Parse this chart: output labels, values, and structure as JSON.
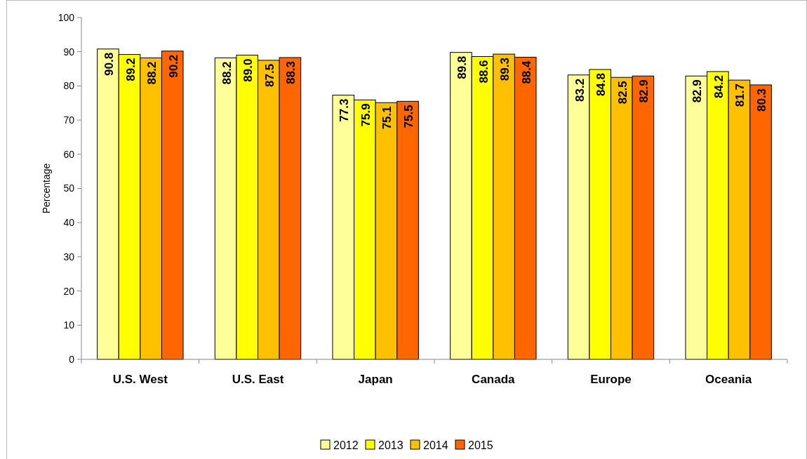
{
  "chart_data": {
    "type": "bar",
    "ylabel": "Percentage",
    "categories": [
      "U.S. West",
      "U.S. East",
      "Japan",
      "Canada",
      "Europe",
      "Oceania"
    ],
    "series": [
      {
        "name": "2012",
        "color": "#ffff99",
        "values": [
          90.8,
          88.2,
          77.3,
          89.8,
          83.2,
          82.9
        ]
      },
      {
        "name": "2013",
        "color": "#ffff00",
        "values": [
          89.2,
          89.0,
          75.9,
          88.6,
          84.8,
          84.2
        ]
      },
      {
        "name": "2014",
        "color": "#ffc000",
        "values": [
          88.2,
          87.5,
          75.1,
          89.3,
          82.5,
          81.7
        ]
      },
      {
        "name": "2015",
        "color": "#ff6600",
        "values": [
          90.2,
          88.3,
          75.5,
          88.4,
          82.9,
          80.3
        ]
      }
    ],
    "value_labels": [
      [
        "90.8",
        "88.2",
        "77.3",
        "89.8",
        "83.2",
        "82.9"
      ],
      [
        "89.2",
        "89.0",
        "75.9",
        "88.6",
        "84.8",
        "84.2"
      ],
      [
        "88.2",
        "87.5",
        "75.1",
        "89.3",
        "82.5",
        "81.7"
      ],
      [
        "90.2",
        "88.3",
        "75.5",
        "88.4",
        "82.9",
        "80.3"
      ]
    ],
    "ylim": [
      0,
      100
    ],
    "yticks": [
      0,
      10,
      20,
      30,
      40,
      50,
      60,
      70,
      80,
      90,
      100
    ],
    "grid": false,
    "legend": "bottom"
  }
}
